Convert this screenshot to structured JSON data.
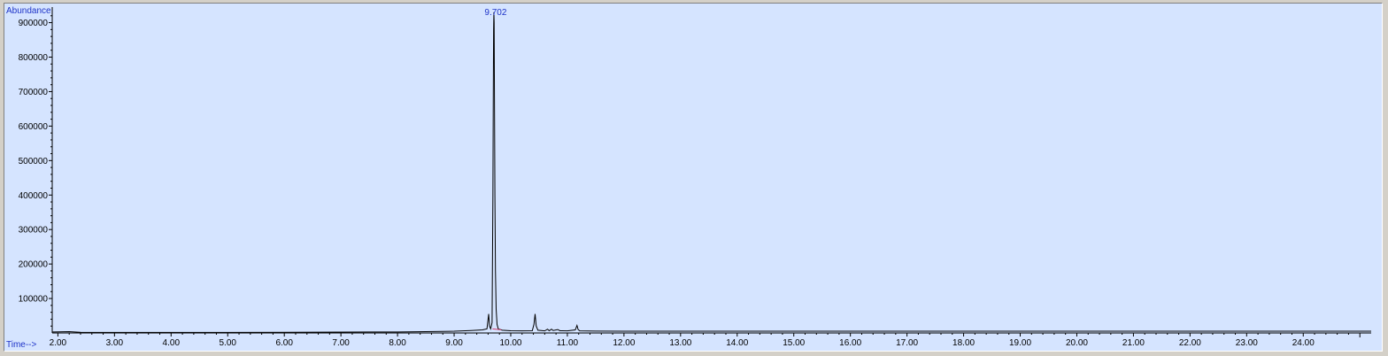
{
  "colors": {
    "plot_background": "#d5e4ff",
    "trace": "#000000",
    "baseline_marker": "#d23c6e",
    "axis_title": "#1f34c8",
    "window_frame": "#d4d0c8"
  },
  "chart_data": {
    "type": "line",
    "title": "",
    "ylabel": "Abundance",
    "xlabel": "Time-->",
    "xlim": [
      1.9,
      25.2
    ],
    "ylim": [
      0,
      940000
    ],
    "grid": false,
    "x_ticks": [
      "2.00",
      "3.00",
      "4.00",
      "5.00",
      "6.00",
      "7.00",
      "8.00",
      "9.00",
      "10.00",
      "11.00",
      "12.00",
      "13.00",
      "14.00",
      "15.00",
      "16.00",
      "17.00",
      "18.00",
      "19.00",
      "20.00",
      "21.00",
      "22.00",
      "23.00",
      "24.00"
    ],
    "y_ticks": [
      "100000",
      "200000",
      "300000",
      "400000",
      "500000",
      "600000",
      "700000",
      "800000",
      "900000"
    ],
    "annotations": [
      {
        "text": "9.702",
        "x": 9.702
      }
    ],
    "series": [
      {
        "color": "#000000",
        "points": [
          [
            1.9,
            3000
          ],
          [
            2.2,
            4000
          ],
          [
            2.4,
            2000
          ],
          [
            3.0,
            1500
          ],
          [
            4.0,
            1500
          ],
          [
            5.0,
            1500
          ],
          [
            6.0,
            2000
          ],
          [
            7.0,
            2500
          ],
          [
            7.5,
            3000
          ],
          [
            8.0,
            3000
          ],
          [
            8.5,
            4000
          ],
          [
            9.0,
            5000
          ],
          [
            9.3,
            7000
          ],
          [
            9.5,
            9000
          ],
          [
            9.58,
            12000
          ],
          [
            9.61,
            55000
          ],
          [
            9.625,
            20000
          ],
          [
            9.645,
            12000
          ],
          [
            9.67,
            30000
          ],
          [
            9.685,
            400000
          ],
          [
            9.692,
            710000
          ],
          [
            9.697,
            880000
          ],
          [
            9.702,
            930000
          ],
          [
            9.707,
            900000
          ],
          [
            9.712,
            700000
          ],
          [
            9.72,
            400000
          ],
          [
            9.73,
            180000
          ],
          [
            9.742,
            70000
          ],
          [
            9.758,
            25000
          ],
          [
            9.78,
            12000
          ],
          [
            9.85,
            8000
          ],
          [
            10.0,
            6500
          ],
          [
            10.2,
            6000
          ],
          [
            10.38,
            6500
          ],
          [
            10.41,
            25000
          ],
          [
            10.43,
            55000
          ],
          [
            10.45,
            20000
          ],
          [
            10.48,
            8000
          ],
          [
            10.6,
            6000
          ],
          [
            10.65,
            11000
          ],
          [
            10.68,
            6500
          ],
          [
            10.72,
            11000
          ],
          [
            10.75,
            7000
          ],
          [
            10.83,
            10000
          ],
          [
            10.87,
            6500
          ],
          [
            11.0,
            6000
          ],
          [
            11.14,
            9000
          ],
          [
            11.17,
            22000
          ],
          [
            11.19,
            10000
          ],
          [
            11.22,
            6000
          ],
          [
            11.5,
            5500
          ],
          [
            12.0,
            5000
          ],
          [
            13.0,
            5000
          ],
          [
            14.0,
            5000
          ],
          [
            15.0,
            5000
          ],
          [
            16.0,
            5000
          ],
          [
            17.0,
            5000
          ],
          [
            18.0,
            5000
          ],
          [
            19.0,
            5000
          ],
          [
            20.0,
            5000
          ],
          [
            21.0,
            5000
          ],
          [
            22.0,
            5000
          ],
          [
            23.0,
            5000
          ],
          [
            24.0,
            5000
          ],
          [
            25.2,
            5000
          ]
        ]
      }
    ]
  }
}
